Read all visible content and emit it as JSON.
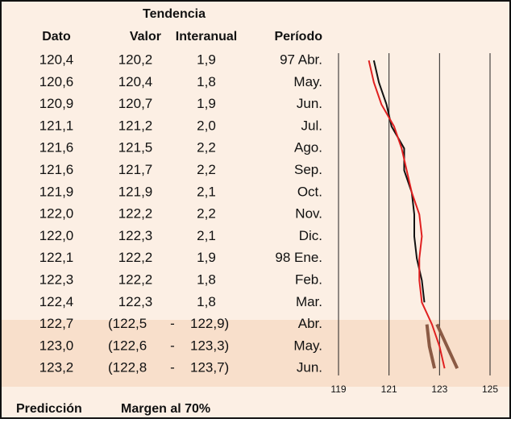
{
  "header": {
    "group": "Tendencia",
    "columns": [
      "Dato",
      "Valor",
      "Interanual",
      "Período"
    ]
  },
  "table": {
    "rows": [
      [
        "120,4",
        "120,2",
        "1,9",
        "97 Abr."
      ],
      [
        "120,6",
        "120,4",
        "1,8",
        "May."
      ],
      [
        "120,9",
        "120,7",
        "1,9",
        "Jun."
      ],
      [
        "121,1",
        "121,2",
        "2,0",
        "Jul."
      ],
      [
        "121,6",
        "121,5",
        "2,2",
        "Ago."
      ],
      [
        "121,6",
        "121,7",
        "2,2",
        "Sep."
      ],
      [
        "121,9",
        "121,9",
        "2,1",
        "Oct."
      ],
      [
        "122,0",
        "122,2",
        "2,2",
        "Nov."
      ],
      [
        "122,0",
        "122,3",
        "2,1",
        "Dic."
      ],
      [
        "122,1",
        "122,2",
        "1,9",
        "98 Ene."
      ],
      [
        "122,3",
        "122,2",
        "1,8",
        "Feb."
      ],
      [
        "122,4",
        "122,3",
        "1,8",
        "Mar."
      ]
    ],
    "prediction_rows": [
      [
        "122,7",
        "(122,5",
        "-",
        "122,9)",
        "Abr."
      ],
      [
        "123,0",
        "(122,6",
        "-",
        "123,3)",
        "May."
      ],
      [
        "123,2",
        "(122,8",
        "-",
        "123,7)",
        "Jun."
      ]
    ]
  },
  "footer": {
    "left": "Predicción",
    "right": "Margen al 70%"
  },
  "chart_data": {
    "type": "line",
    "xlim": [
      119,
      125
    ],
    "xticks": [
      119,
      121,
      123,
      125
    ],
    "grid": true,
    "series": [
      {
        "name": "Dato",
        "color": "#111111",
        "values": [
          120.4,
          120.6,
          120.9,
          121.1,
          121.6,
          121.6,
          121.9,
          122.0,
          122.0,
          122.1,
          122.3,
          122.4,
          null,
          null,
          null
        ]
      },
      {
        "name": "Valor",
        "color": "#e02020",
        "values": [
          120.2,
          120.4,
          120.7,
          121.2,
          121.5,
          121.7,
          121.9,
          122.2,
          122.3,
          122.2,
          122.2,
          122.3,
          122.7,
          123.0,
          123.2
        ]
      },
      {
        "color": "#8b5a44",
        "values": [
          null,
          null,
          null,
          null,
          null,
          null,
          null,
          null,
          null,
          null,
          null,
          null,
          122.5,
          122.6,
          122.8
        ]
      },
      {
        "color": "#8b5a44",
        "values": [
          null,
          null,
          null,
          null,
          null,
          null,
          null,
          null,
          null,
          null,
          null,
          null,
          122.9,
          123.3,
          123.7
        ]
      }
    ]
  }
}
